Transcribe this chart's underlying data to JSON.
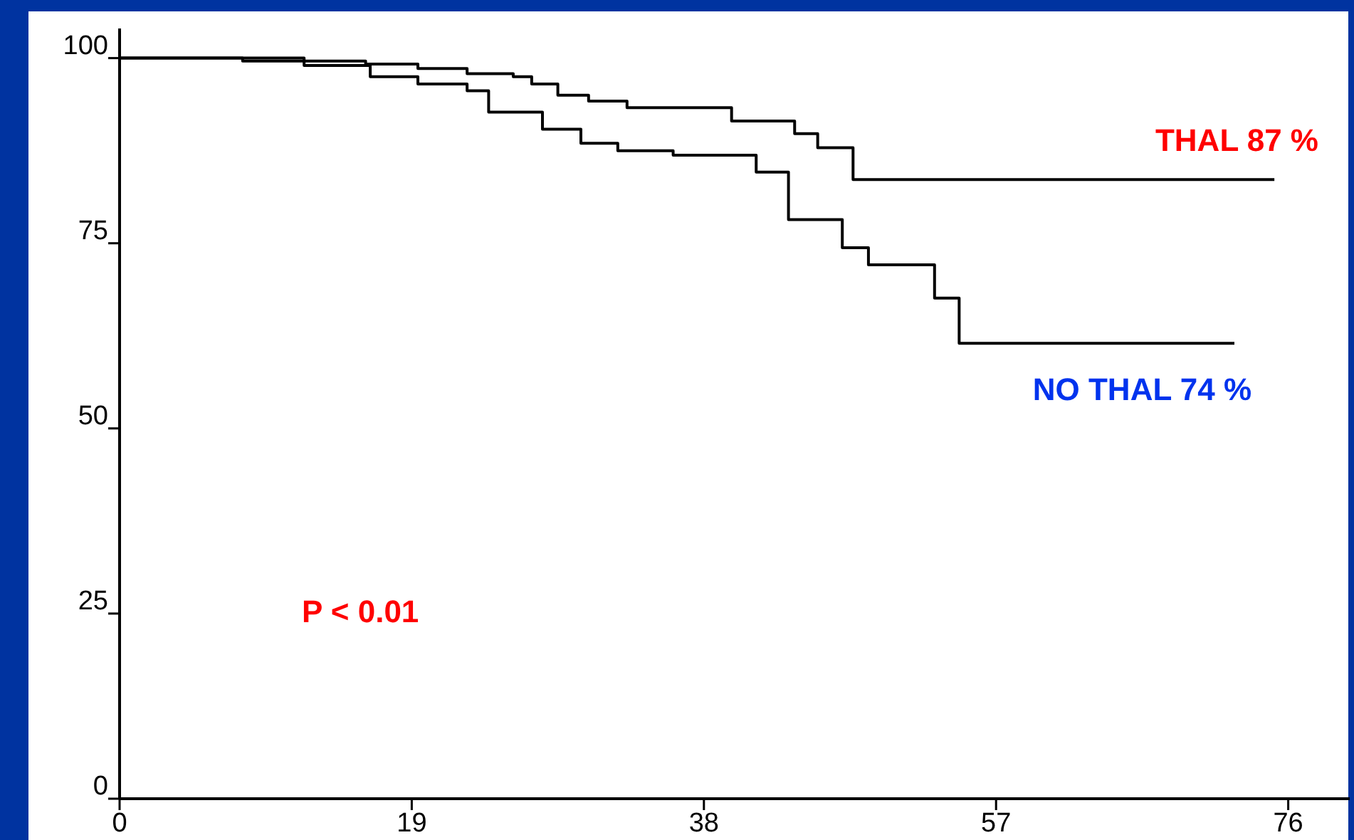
{
  "chart_data": {
    "type": "step",
    "xlim": [
      0,
      80
    ],
    "ylim": [
      0,
      104
    ],
    "xticks": [
      0,
      19,
      38,
      57,
      76
    ],
    "yticks": [
      0,
      25,
      50,
      75,
      100
    ],
    "grid": false,
    "marker": "none",
    "line_style": "solid",
    "annotations": [
      "P < 0.01"
    ],
    "series": [
      {
        "name": "THAL 87 %",
        "color": "#000000",
        "x": [
          0,
          8,
          16,
          19.4,
          22.6,
          25.6,
          26.8,
          28.5,
          30.5,
          33,
          39.8,
          43.9,
          45.4,
          47.7,
          75.1
        ],
        "values": [
          100,
          99.6,
          99.2,
          98.6,
          97.9,
          97.5,
          96.5,
          95,
          94.2,
          93.3,
          91.5,
          89.8,
          87.9,
          83.6,
          83.6
        ]
      },
      {
        "name": "NO THAL 74 %",
        "color": "#000000",
        "x": [
          0,
          12,
          16.3,
          19.4,
          22.6,
          24,
          27.5,
          30,
          32.4,
          36,
          41.4,
          43.5,
          47,
          48.7,
          53,
          54.6,
          72.5
        ],
        "values": [
          100,
          99,
          97.5,
          96.5,
          95.6,
          92.7,
          90.4,
          88.5,
          87.5,
          86.9,
          84.6,
          78.2,
          74.4,
          72.1,
          67.6,
          61.5,
          61.5
        ]
      }
    ]
  }
}
